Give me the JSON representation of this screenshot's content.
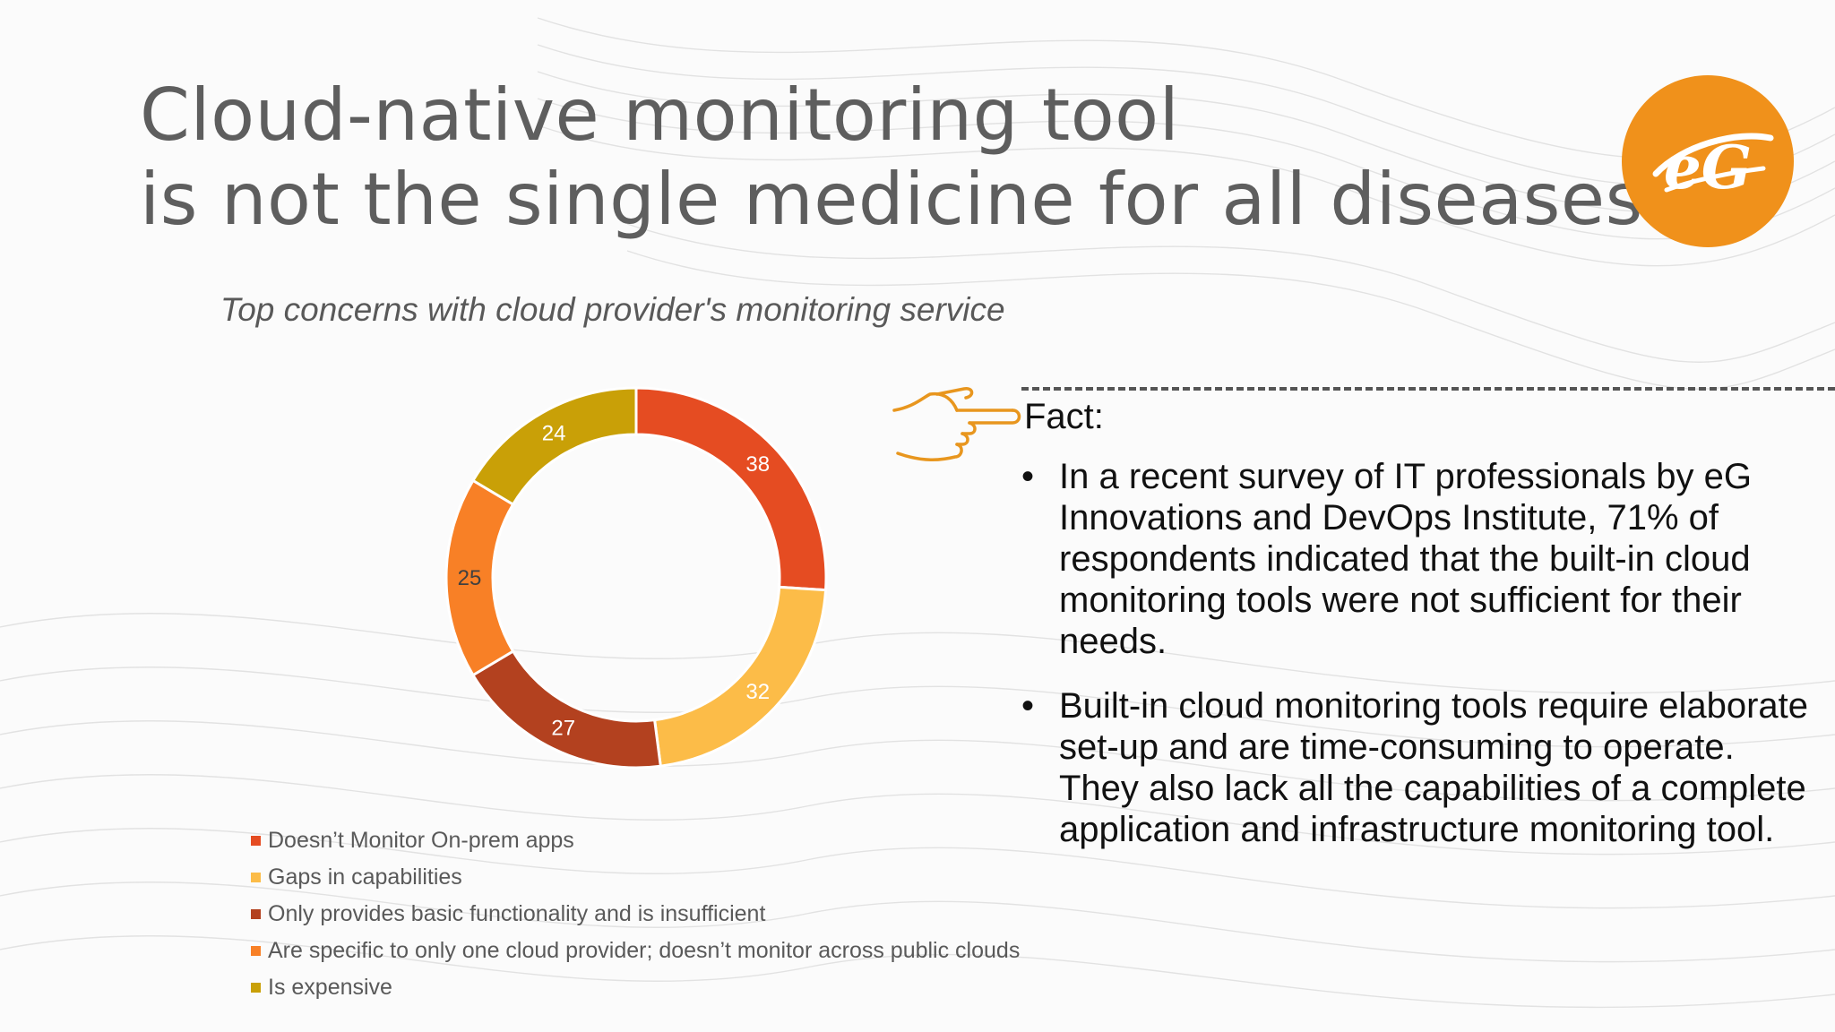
{
  "slide": {
    "title_lines": [
      "Cloud-native monitoring tool",
      "is not the single medicine for all diseases"
    ],
    "logo": {
      "icon": "eg-logo-icon",
      "text": "eG",
      "color": "#f0911b"
    }
  },
  "chart_data": {
    "type": "pie",
    "style": "donut",
    "title": "Top concerns with cloud provider's monitoring service",
    "categories": [
      "Doesn’t Monitor On-prem apps",
      "Gaps in capabilities",
      "Only provides basic functionality and is insufficient",
      "Are specific to only one cloud provider; doesn’t monitor across public clouds",
      "Is expensive"
    ],
    "values": [
      38,
      32,
      27,
      25,
      24
    ],
    "colors": [
      "#e54c22",
      "#fcbc48",
      "#b3411f",
      "#f88026",
      "#c9a007"
    ],
    "data_labels": [
      "38",
      "32",
      "27",
      "25",
      "24"
    ],
    "legend_position": "bottom-left"
  },
  "fact": {
    "icon": "pointing-hand-icon",
    "heading": "Fact:",
    "bullets": [
      "In a recent survey of IT professionals by eG Innovations and DevOps Institute, 71% of respondents indicated that the built-in cloud monitoring tools were not sufficient for their needs.",
      "Built-in cloud monitoring tools require elaborate set-up and are time-consuming to operate. They also lack all the capabilities of a complete application and infrastructure monitoring tool."
    ]
  }
}
